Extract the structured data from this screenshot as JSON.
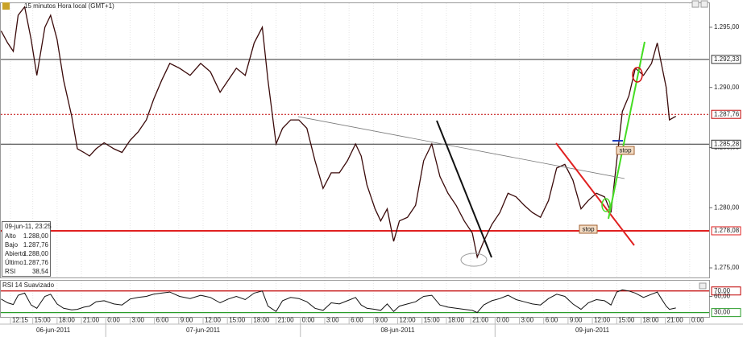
{
  "chart_data": {
    "type": "line",
    "title": "15 minutos Hora local (GMT+1)",
    "x": [
      11.1,
      11.9,
      12.6,
      13.2,
      14.0,
      14.8,
      15.5,
      16.5,
      17.2,
      18.0,
      18.8,
      19.8,
      20.5,
      21.3,
      22.0,
      22.8,
      23.8,
      25.0,
      26.0,
      27.0,
      28.0,
      29.0,
      29.9,
      30.9,
      31.9,
      33.1,
      34.4,
      35.7,
      36.9,
      38.1,
      39.1,
      40.1,
      41.2,
      42.3,
      43.3,
      44.0,
      45.0,
      45.8,
      46.8,
      47.8,
      48.8,
      49.8,
      50.8,
      51.8,
      52.8,
      53.8,
      54.8,
      55.5,
      56.2,
      57.2,
      57.9,
      58.7,
      59.5,
      60.2,
      61.2,
      62.2,
      63.2,
      64.2,
      65.2,
      66.2,
      67.2,
      68.2,
      69.2,
      69.8,
      70.6,
      71.6,
      72.6,
      73.6,
      74.6,
      75.6,
      76.6,
      77.6,
      78.6,
      79.6,
      80.6,
      81.6,
      82.6,
      83.5,
      84.5,
      85.5,
      86.3,
      87.0,
      87.7,
      88.5,
      89.3,
      90.3,
      91.3,
      92.0,
      92.5,
      93.1,
      93.5,
      94.3
    ],
    "values": [
      1.2947,
      1.2937,
      1.293,
      1.296,
      1.2967,
      1.294,
      1.291,
      1.295,
      1.296,
      1.294,
      1.2906,
      1.2876,
      1.2849,
      1.2846,
      1.2843,
      1.2849,
      1.2854,
      1.2849,
      1.2846,
      1.2856,
      1.2863,
      1.2873,
      1.289,
      1.2906,
      1.292,
      1.2916,
      1.291,
      1.292,
      1.2913,
      1.2896,
      1.2906,
      1.2916,
      1.291,
      1.2937,
      1.295,
      1.2906,
      1.2853,
      1.2866,
      1.2873,
      1.2873,
      1.2866,
      1.2839,
      1.2816,
      1.2829,
      1.2829,
      1.2839,
      1.2853,
      1.2843,
      1.2819,
      1.2799,
      1.2789,
      1.2799,
      1.2772,
      1.2789,
      1.2792,
      1.2802,
      1.2839,
      1.2853,
      1.2826,
      1.2812,
      1.2802,
      1.2789,
      1.2779,
      1.2759,
      1.2772,
      1.2786,
      1.2796,
      1.2812,
      1.2809,
      1.2802,
      1.2796,
      1.2792,
      1.2806,
      1.2833,
      1.2836,
      1.2823,
      1.2799,
      1.2806,
      1.2812,
      1.2809,
      1.2796,
      1.2839,
      1.288,
      1.2893,
      1.2916,
      1.291,
      1.292,
      1.2937,
      1.292,
      1.29,
      1.2873,
      1.2876
    ],
    "color": "#3a0a0a",
    "xlim": [
      11.06,
      98.4
    ],
    "ylim": [
      1.2742,
      1.297
    ],
    "yticks": [
      {
        "value": 1.275,
        "label": "1.275,00"
      },
      {
        "value": 1.28,
        "label": "1.280,00"
      },
      {
        "value": 1.285,
        "label": "1.285,00"
      },
      {
        "value": 1.29,
        "label": "1.290,00"
      },
      {
        "value": 1.295,
        "label": "1.295,00"
      }
    ],
    "xticks": [
      {
        "value": 12.25,
        "label": "12:15"
      },
      {
        "value": 15,
        "label": "15:00"
      },
      {
        "value": 18,
        "label": "18:00"
      },
      {
        "value": 21,
        "label": "21:00"
      },
      {
        "value": 24,
        "label": "0:00"
      },
      {
        "value": 27,
        "label": "3:00"
      },
      {
        "value": 30,
        "label": "6:00"
      },
      {
        "value": 33,
        "label": "9:00"
      },
      {
        "value": 36,
        "label": "12:00"
      },
      {
        "value": 39,
        "label": "15:00"
      },
      {
        "value": 42,
        "label": "18:00"
      },
      {
        "value": 45,
        "label": "21:00"
      },
      {
        "value": 48,
        "label": "0:00"
      },
      {
        "value": 51,
        "label": "3:00"
      },
      {
        "value": 54,
        "label": "6:00"
      },
      {
        "value": 57,
        "label": "9:00"
      },
      {
        "value": 60,
        "label": "12:00"
      },
      {
        "value": 63,
        "label": "15:00"
      },
      {
        "value": 66,
        "label": "18:00"
      },
      {
        "value": 69,
        "label": "21:00"
      },
      {
        "value": 72,
        "label": "0:00"
      },
      {
        "value": 75,
        "label": "3:00"
      },
      {
        "value": 78,
        "label": "6:00"
      },
      {
        "value": 81,
        "label": "9:00"
      },
      {
        "value": 84,
        "label": "12:00"
      },
      {
        "value": 87,
        "label": "15:00"
      },
      {
        "value": 90,
        "label": "18:00"
      },
      {
        "value": 93,
        "label": "21:00"
      },
      {
        "value": 96,
        "label": "0:00"
      }
    ],
    "days": [
      {
        "value": 0,
        "label": "06-jun-2011"
      },
      {
        "value": 24,
        "label": "07-jun-2011"
      },
      {
        "value": 48,
        "label": "08-jun-2011"
      },
      {
        "value": 72,
        "label": "09-jun-2011"
      }
    ],
    "levels": [
      {
        "value": 1.29233,
        "label": "1.292,33",
        "color": "#333333",
        "dash": false
      },
      {
        "value": 1.28776,
        "label": "1.287,76",
        "color": "#c00000",
        "dash": true
      },
      {
        "value": 1.28528,
        "label": "1.285,28",
        "color": "#333333",
        "dash": false
      },
      {
        "value": 1.27808,
        "label": "1.278,08",
        "color": "#e02020",
        "dash": false
      }
    ],
    "annotations": [
      "stop",
      "stop"
    ],
    "grid": true,
    "rsi": {
      "title": "RSI 14 Suavizado",
      "color": "#111111",
      "values": [
        55,
        48,
        45,
        62,
        66,
        44,
        38,
        60,
        64,
        46,
        38,
        35,
        36,
        40,
        42,
        50,
        52,
        46,
        44,
        55,
        58,
        60,
        64,
        66,
        68,
        60,
        56,
        62,
        58,
        48,
        55,
        60,
        54,
        66,
        70,
        42,
        32,
        52,
        58,
        56,
        50,
        38,
        34,
        48,
        46,
        52,
        58,
        44,
        38,
        36,
        34,
        46,
        32,
        42,
        46,
        50,
        60,
        62,
        44,
        40,
        38,
        36,
        34,
        30,
        44,
        52,
        56,
        62,
        54,
        50,
        46,
        44,
        56,
        64,
        60,
        46,
        36,
        48,
        54,
        52,
        44,
        68,
        72,
        70,
        66,
        58,
        64,
        68,
        56,
        42,
        36,
        38.54
      ],
      "ylim": [
        22,
        89
      ],
      "yticks": [
        {
          "value": 70,
          "label": "70,00",
          "color": "#c00000"
        },
        {
          "value": 60,
          "label": "60,00",
          "color": null
        },
        {
          "value": 30,
          "label": "30,00",
          "color": "#2a9d2a"
        }
      ]
    }
  },
  "info_box": {
    "date": "09-jun-11, 23:25",
    "rows": [
      [
        "Alto",
        "1.288,00"
      ],
      [
        "Bajo",
        "1.287,76"
      ],
      [
        "Abierto",
        "1.288,00"
      ],
      [
        "Último",
        "1.287,76"
      ],
      [
        "RSI",
        "38,54"
      ]
    ]
  }
}
